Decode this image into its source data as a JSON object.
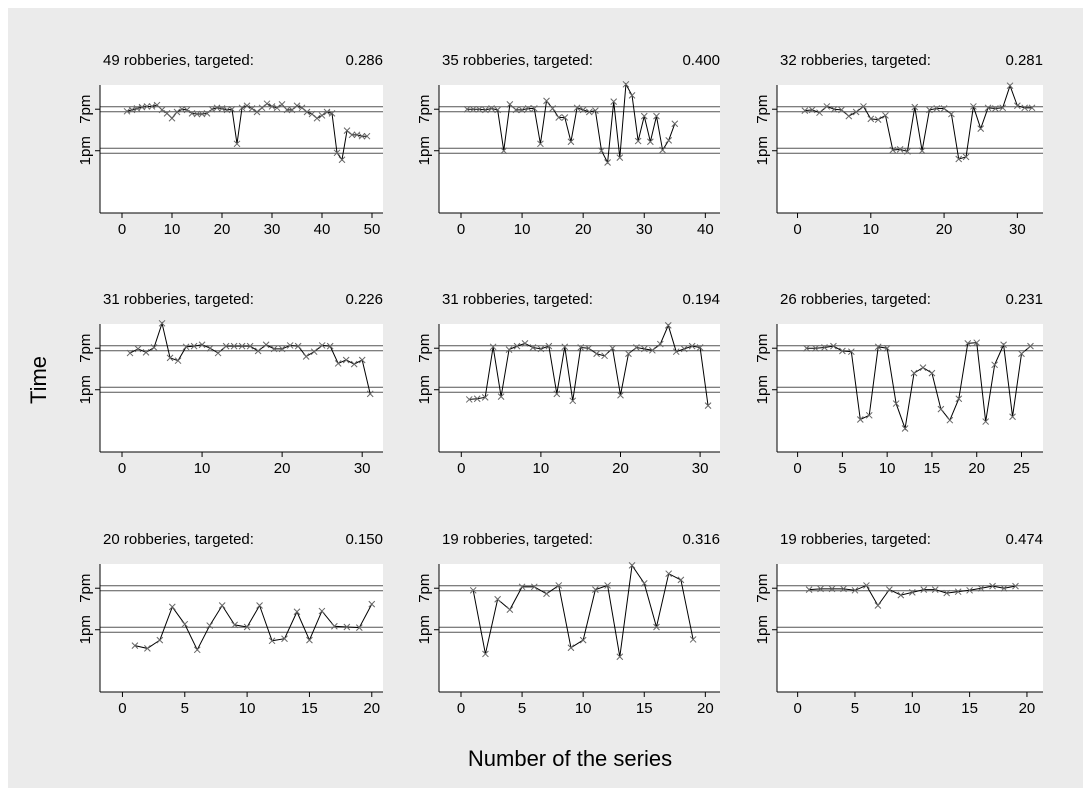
{
  "y_label": "Time",
  "x_label": "Number of the series",
  "chart_data": [
    {
      "type": "line",
      "title": "49 robberies, targeted:",
      "targeted_share": "0.286",
      "x": [
        1,
        2,
        3,
        4,
        5,
        6,
        7,
        8,
        9,
        10,
        11,
        12,
        13,
        14,
        15,
        16,
        17,
        18,
        19,
        20,
        21,
        22,
        23,
        24,
        25,
        26,
        27,
        28,
        29,
        30,
        31,
        32,
        33,
        34,
        35,
        36,
        37,
        38,
        39,
        40,
        41,
        42,
        43,
        44,
        45,
        46,
        47,
        48,
        49
      ],
      "values": [
        18.7,
        18.9,
        19.1,
        19.3,
        19.4,
        19.4,
        19.6,
        18.9,
        18.4,
        17.7,
        18.6,
        19.0,
        18.9,
        18.4,
        18.3,
        18.3,
        18.4,
        19.0,
        19.2,
        19.1,
        18.9,
        19.0,
        14.0,
        19.2,
        19.5,
        19.1,
        18.6,
        19.2,
        19.8,
        19.4,
        19.2,
        19.7,
        18.9,
        18.9,
        19.5,
        19.2,
        18.6,
        18.3,
        17.7,
        18.1,
        18.6,
        18.4,
        12.7,
        11.7,
        15.9,
        15.3,
        15.3,
        15.1,
        15.1
      ],
      "xlim": [
        -4.4,
        52.2
      ],
      "xticks": [
        0,
        10,
        20,
        30,
        40,
        50
      ],
      "ylim": [
        4,
        22.5
      ],
      "yticks": [
        {
          "value": 13,
          "label": "1pm"
        },
        {
          "value": 19,
          "label": "7pm"
        }
      ]
    },
    {
      "type": "line",
      "title": "35 robberies, targeted:",
      "targeted_share": "0.400",
      "x": [
        1,
        2,
        3,
        4,
        5,
        6,
        7,
        8,
        9,
        10,
        11,
        12,
        13,
        14,
        15,
        16,
        17,
        18,
        19,
        20,
        21,
        22,
        23,
        24,
        25,
        26,
        27,
        28,
        29,
        30,
        31,
        32,
        33,
        34,
        35
      ],
      "values": [
        19.0,
        19.0,
        19.0,
        18.9,
        19.1,
        18.9,
        13.0,
        19.7,
        18.9,
        18.9,
        19.1,
        19.1,
        14.0,
        20.2,
        19.1,
        17.8,
        17.8,
        14.3,
        19.2,
        18.9,
        18.6,
        18.8,
        13.0,
        11.3,
        20.1,
        12.0,
        22.6,
        21.0,
        14.4,
        18.0,
        14.3,
        18.0,
        13.1,
        14.5,
        16.9
      ],
      "xlim": [
        -3.6,
        42.4
      ],
      "xticks": [
        0,
        10,
        20,
        30,
        40
      ],
      "ylim": [
        4,
        22.5
      ],
      "yticks": [
        {
          "value": 13,
          "label": "1pm"
        },
        {
          "value": 19,
          "label": "7pm"
        }
      ]
    },
    {
      "type": "line",
      "title": "32 robberies, targeted:",
      "targeted_share": "0.281",
      "x": [
        1,
        2,
        3,
        4,
        5,
        6,
        7,
        8,
        9,
        10,
        11,
        12,
        13,
        14,
        15,
        16,
        17,
        18,
        19,
        20,
        21,
        22,
        23,
        24,
        25,
        26,
        27,
        28,
        29,
        30,
        31,
        32
      ],
      "values": [
        18.8,
        18.9,
        18.5,
        19.4,
        19.0,
        18.9,
        18.0,
        18.6,
        19.4,
        17.6,
        17.5,
        18.1,
        13.1,
        13.2,
        12.9,
        19.3,
        13.0,
        18.9,
        19.1,
        19.1,
        18.3,
        11.8,
        12.1,
        19.4,
        16.2,
        19.2,
        19.1,
        19.2,
        22.4,
        19.5,
        19.2,
        19.2
      ],
      "xlim": [
        -2.8,
        33.5
      ],
      "xticks": [
        0,
        10,
        20,
        30
      ],
      "ylim": [
        4,
        22.5
      ],
      "yticks": [
        {
          "value": 13,
          "label": "1pm"
        },
        {
          "value": 19,
          "label": "7pm"
        }
      ]
    },
    {
      "type": "line",
      "title": "31 robberies, targeted:",
      "targeted_share": "0.226",
      "x": [
        1,
        2,
        3,
        4,
        5,
        6,
        7,
        8,
        9,
        10,
        11,
        12,
        13,
        14,
        15,
        16,
        17,
        18,
        19,
        20,
        21,
        22,
        23,
        24,
        25,
        26,
        27,
        28,
        29,
        30,
        31
      ],
      "values": [
        18.3,
        18.9,
        18.4,
        19.1,
        22.6,
        17.6,
        17.2,
        19.2,
        19.3,
        19.5,
        19.0,
        18.3,
        19.3,
        19.3,
        19.3,
        19.3,
        18.6,
        19.5,
        18.9,
        18.9,
        19.4,
        19.3,
        17.8,
        18.5,
        19.4,
        19.3,
        16.8,
        17.3,
        16.7,
        17.3,
        12.4
      ],
      "xlim": [
        -2.75,
        32.6
      ],
      "xticks": [
        0,
        10,
        20,
        30
      ],
      "ylim": [
        4,
        22.5
      ],
      "yticks": [
        {
          "value": 13,
          "label": "1pm"
        },
        {
          "value": 19,
          "label": "7pm"
        }
      ]
    },
    {
      "type": "line",
      "title": "31 robberies, targeted:",
      "targeted_share": "0.194",
      "x": [
        1,
        2,
        3,
        4,
        5,
        6,
        7,
        8,
        9,
        10,
        11,
        12,
        13,
        14,
        15,
        16,
        17,
        18,
        19,
        20,
        21,
        22,
        23,
        24,
        25,
        26,
        27,
        28,
        29,
        30,
        31
      ],
      "values": [
        11.6,
        11.7,
        11.9,
        19.2,
        12.0,
        18.8,
        19.3,
        19.7,
        19.1,
        18.9,
        19.3,
        12.4,
        19.2,
        11.4,
        19.1,
        19.0,
        18.2,
        17.9,
        19.0,
        12.2,
        18.2,
        19.1,
        18.9,
        18.7,
        19.6,
        22.3,
        18.5,
        18.9,
        19.3,
        19.1,
        10.7
      ],
      "xlim": [
        -2.8,
        32.5
      ],
      "xticks": [
        0,
        10,
        20,
        30
      ],
      "ylim": [
        4,
        22.5
      ],
      "yticks": [
        {
          "value": 13,
          "label": "1pm"
        },
        {
          "value": 19,
          "label": "7pm"
        }
      ]
    },
    {
      "type": "line",
      "title": "26 robberies, targeted:",
      "targeted_share": "0.231",
      "x": [
        1,
        2,
        3,
        4,
        5,
        6,
        7,
        8,
        9,
        10,
        11,
        12,
        13,
        14,
        15,
        16,
        17,
        18,
        19,
        20,
        21,
        22,
        23,
        24,
        25,
        26
      ],
      "values": [
        19.0,
        19.0,
        19.1,
        19.3,
        18.6,
        18.5,
        8.7,
        9.3,
        19.2,
        19.0,
        11.0,
        7.4,
        15.4,
        16.2,
        15.4,
        10.2,
        8.6,
        11.7,
        19.7,
        19.8,
        8.4,
        16.6,
        19.5,
        9.1,
        18.2,
        19.3
      ],
      "xlim": [
        -2.3,
        27.4
      ],
      "xticks": [
        0,
        5,
        10,
        15,
        20,
        25
      ],
      "ylim": [
        4,
        22.5
      ],
      "yticks": [
        {
          "value": 13,
          "label": "1pm"
        },
        {
          "value": 19,
          "label": "7pm"
        }
      ]
    },
    {
      "type": "line",
      "title": "20 robberies, targeted:",
      "targeted_share": "0.150",
      "x": [
        1,
        2,
        3,
        4,
        5,
        6,
        7,
        8,
        9,
        10,
        11,
        12,
        13,
        14,
        15,
        16,
        17,
        18,
        19,
        20
      ],
      "values": [
        10.7,
        10.3,
        11.5,
        16.3,
        13.8,
        10.1,
        13.6,
        16.5,
        13.7,
        13.4,
        16.5,
        11.4,
        11.7,
        15.6,
        11.5,
        15.7,
        13.5,
        13.4,
        13.3,
        16.7
      ],
      "xlim": [
        -1.8,
        20.9
      ],
      "xticks": [
        0,
        5,
        10,
        15,
        20
      ],
      "ylim": [
        4,
        22.5
      ],
      "yticks": [
        {
          "value": 13,
          "label": "1pm"
        },
        {
          "value": 19,
          "label": "7pm"
        }
      ]
    },
    {
      "type": "line",
      "title": "19 robberies, targeted:",
      "targeted_share": "0.316",
      "x": [
        1,
        2,
        3,
        4,
        5,
        6,
        7,
        8,
        9,
        10,
        11,
        12,
        13,
        14,
        15,
        16,
        17,
        18,
        19
      ],
      "values": [
        18.7,
        9.5,
        17.4,
        15.9,
        19.2,
        19.2,
        18.2,
        19.4,
        10.4,
        11.5,
        18.8,
        19.4,
        9.1,
        22.3,
        19.7,
        13.4,
        21.1,
        20.2,
        11.6
      ],
      "xlim": [
        -1.8,
        21.2
      ],
      "xticks": [
        0,
        5,
        10,
        15,
        20
      ],
      "ylim": [
        4,
        22.5
      ],
      "yticks": [
        {
          "value": 13,
          "label": "1pm"
        },
        {
          "value": 19,
          "label": "7pm"
        }
      ]
    },
    {
      "type": "line",
      "title": "19 robberies, targeted:",
      "targeted_share": "0.474",
      "x": [
        1,
        2,
        3,
        4,
        5,
        6,
        7,
        8,
        9,
        10,
        11,
        12,
        13,
        14,
        15,
        16,
        17,
        18,
        19
      ],
      "values": [
        18.8,
        18.9,
        18.9,
        18.9,
        18.7,
        19.4,
        16.5,
        18.8,
        18.0,
        18.4,
        18.8,
        18.8,
        18.3,
        18.5,
        18.7,
        19.0,
        19.3,
        19.0,
        19.3
      ],
      "xlim": [
        -1.8,
        21.4
      ],
      "xticks": [
        0,
        5,
        10,
        15,
        20
      ],
      "ylim": [
        4,
        22.5
      ],
      "yticks": [
        {
          "value": 13,
          "label": "1pm"
        },
        {
          "value": 19,
          "label": "7pm"
        }
      ]
    }
  ]
}
